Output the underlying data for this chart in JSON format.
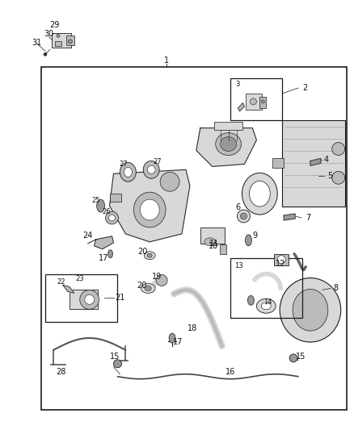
{
  "bg": "#ffffff",
  "fw": 4.38,
  "fh": 5.33,
  "dpi": 100,
  "lc": "#1a1a1a",
  "fc_light": "#d8d8d8",
  "fc_med": "#bbbbbb",
  "fc_dark": "#999999",
  "lw_thin": 0.5,
  "lw_med": 0.8,
  "lw_thick": 1.2,
  "fs_label": 7.0,
  "fs_small": 6.0
}
